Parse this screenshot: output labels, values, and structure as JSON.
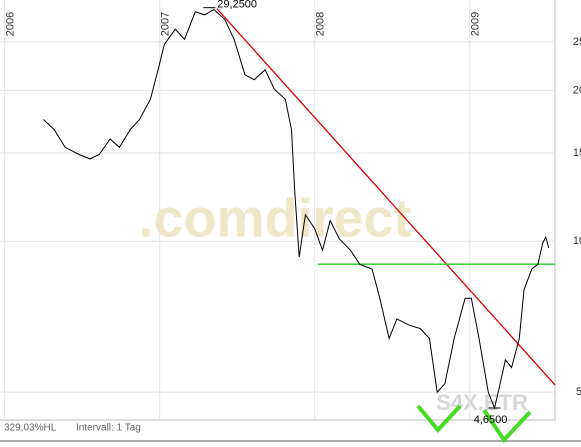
{
  "chart_data": {
    "type": "line",
    "watermark": ".comdirect",
    "symbol": "S4X.ETR",
    "footer": [
      "329,03%HL",
      "Intervall: 1 Tag"
    ],
    "log_scale": true,
    "grid": true,
    "xlim": [
      2005.97,
      2009.55
    ],
    "xticks": [
      2006,
      2007,
      2008,
      2009
    ],
    "ylim": [
      4.4,
      30.3
    ],
    "yticks": [
      5,
      10,
      15,
      20,
      25
    ],
    "series": [
      {
        "color": "#000000",
        "x": [
          2006.25,
          2006.32,
          2006.39,
          2006.48,
          2006.55,
          2006.61,
          2006.68,
          2006.74,
          2006.81,
          2006.87,
          2006.94,
          2006.99,
          2007.03,
          2007.1,
          2007.16,
          2007.23,
          2007.29,
          2007.35,
          2007.42,
          2007.48,
          2007.55,
          2007.61,
          2007.68,
          2007.74,
          2007.81,
          2007.85,
          2007.87,
          2007.9,
          2007.94,
          2008.0,
          2008.05,
          2008.1,
          2008.16,
          2008.23,
          2008.29,
          2008.37,
          2008.42,
          2008.48,
          2008.53,
          2008.61,
          2008.68,
          2008.74,
          2008.79,
          2008.84,
          2008.9,
          2008.97,
          2009.01,
          2009.06,
          2009.12,
          2009.16,
          2009.19,
          2009.23,
          2009.27,
          2009.32,
          2009.35,
          2009.4,
          2009.44,
          2009.47,
          2009.49,
          2009.51
        ],
        "values": [
          17.5,
          16.7,
          15.4,
          14.9,
          14.6,
          14.9,
          16.0,
          15.4,
          16.7,
          17.5,
          19.2,
          22.0,
          24.7,
          26.5,
          25.3,
          28.7,
          28.3,
          29.0,
          27.7,
          25.3,
          21.5,
          21.0,
          22.0,
          20.1,
          19.2,
          16.7,
          12.7,
          9.3,
          11.3,
          10.6,
          9.6,
          11.0,
          10.1,
          9.6,
          9.0,
          8.8,
          7.7,
          6.4,
          7.0,
          6.8,
          6.7,
          6.4,
          5.0,
          5.2,
          6.4,
          7.7,
          7.7,
          6.4,
          5.0,
          4.65,
          5.1,
          5.8,
          5.6,
          6.4,
          8.0,
          8.8,
          9.0,
          9.9,
          10.2,
          9.7
        ]
      }
    ],
    "trendlines": [
      {
        "color": "#e00000",
        "x": [
          2007.37,
          2009.55
        ],
        "values": [
          29.1,
          5.17
        ]
      },
      {
        "color": "#22cc22",
        "x": [
          2008.02,
          2009.55
        ],
        "values": [
          9.0,
          9.0
        ]
      }
    ],
    "annotations": [
      {
        "text": "29,2500",
        "x": 2007.32,
        "y": 29.25,
        "position": "above"
      },
      {
        "text": "4,6500",
        "x": 2009.16,
        "y": 4.65,
        "position": "below"
      }
    ]
  }
}
